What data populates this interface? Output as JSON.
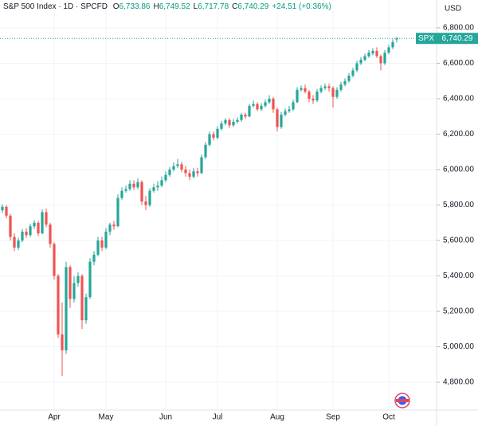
{
  "chart_data": {
    "type": "candlestick",
    "symbol_line": "S&P 500 Index · 1D · SPCFD",
    "stats": [
      {
        "label": "O",
        "value": "6,733.86"
      },
      {
        "label": "H",
        "value": "6,749.52"
      },
      {
        "label": "L",
        "value": "6,717.78"
      },
      {
        "label": "C",
        "value": "6,740.29"
      },
      {
        "value": "+24.51 (+0.36%)"
      }
    ],
    "currency": "USD",
    "last_price": {
      "symbol": "SPX",
      "label": "6,740.29"
    },
    "up_color": "#26a69a",
    "down_color": "#ef5350",
    "grid": true,
    "ylim": [
      4643,
      6957
    ],
    "yticks": [
      {
        "value": 4800,
        "label": "4,800.00"
      },
      {
        "value": 5000,
        "label": "5,000.00"
      },
      {
        "value": 5200,
        "label": "5,200.00"
      },
      {
        "value": 5400,
        "label": "5,400.00"
      },
      {
        "value": 5600,
        "label": "5,600.00"
      },
      {
        "value": 5800,
        "label": "5,800.00"
      },
      {
        "value": 6000,
        "label": "6,000.00"
      },
      {
        "value": 6200,
        "label": "6,200.00"
      },
      {
        "value": 6400,
        "label": "6,400.00"
      },
      {
        "value": 6600,
        "label": "6,600.00"
      },
      {
        "value": 6800,
        "label": "6,800.00"
      }
    ],
    "categories": [
      null,
      null,
      null,
      null,
      null,
      null,
      null,
      null,
      null,
      null,
      null,
      null,
      null,
      "Apr",
      null,
      null,
      null,
      null,
      null,
      null,
      null,
      null,
      null,
      null,
      null,
      null,
      "May",
      null,
      null,
      null,
      null,
      null,
      null,
      null,
      null,
      null,
      null,
      null,
      null,
      null,
      null,
      "Jun",
      null,
      null,
      null,
      null,
      null,
      null,
      null,
      null,
      null,
      null,
      null,
      null,
      "Jul",
      null,
      null,
      null,
      null,
      null,
      null,
      null,
      null,
      null,
      null,
      null,
      null,
      null,
      null,
      "Aug",
      null,
      null,
      null,
      null,
      null,
      null,
      null,
      null,
      null,
      null,
      null,
      null,
      null,
      "Sep",
      null,
      null,
      null,
      null,
      null,
      null,
      null,
      null,
      null,
      null,
      null,
      null,
      null,
      "Oct",
      null,
      null
    ],
    "open": [
      5770,
      5790,
      5740,
      5620,
      5560,
      5600,
      5650,
      5630,
      5680,
      5700,
      5640,
      5760,
      5690,
      5580,
      5400,
      5070,
      4980,
      5450,
      5270,
      5360,
      5400,
      5150,
      5280,
      5480,
      5520,
      5600,
      5560,
      5650,
      5690,
      5680,
      5840,
      5880,
      5890,
      5920,
      5900,
      5930,
      5820,
      5800,
      5880,
      5900,
      5910,
      5940,
      5970,
      6000,
      6020,
      6030,
      6000,
      5980,
      5960,
      5990,
      5980,
      6070,
      6140,
      6200,
      6180,
      6230,
      6260,
      6280,
      6250,
      6270,
      6280,
      6310,
      6300,
      6360,
      6370,
      6340,
      6360,
      6380,
      6400,
      6340,
      6240,
      6310,
      6330,
      6340,
      6380,
      6450,
      6460,
      6440,
      6400,
      6390,
      6440,
      6460,
      6470,
      6460,
      6410,
      6450,
      6480,
      6500,
      6530,
      6560,
      6600,
      6620,
      6640,
      6655,
      6670,
      6640,
      6600,
      6660,
      6690,
      6733.86
    ],
    "high": [
      5805,
      5800,
      5750,
      5640,
      5615,
      5665,
      5670,
      5695,
      5715,
      5710,
      5775,
      5780,
      5700,
      5590,
      5410,
      5250,
      5480,
      5460,
      5400,
      5420,
      5410,
      5300,
      5500,
      5540,
      5620,
      5620,
      5670,
      5700,
      5710,
      5860,
      5900,
      5910,
      5940,
      5940,
      5950,
      5940,
      5850,
      5895,
      5920,
      5935,
      5960,
      5990,
      6015,
      6040,
      6060,
      6045,
      6020,
      6000,
      6010,
      6010,
      6085,
      6155,
      6215,
      6215,
      6245,
      6275,
      6290,
      6290,
      6285,
      6295,
      6320,
      6320,
      6370,
      6390,
      6380,
      6375,
      6395,
      6420,
      6410,
      6350,
      6325,
      6345,
      6360,
      6395,
      6465,
      6475,
      6480,
      6450,
      6420,
      6455,
      6475,
      6485,
      6485,
      6470,
      6465,
      6495,
      6515,
      6545,
      6575,
      6615,
      6635,
      6655,
      6675,
      6685,
      6690,
      6650,
      6675,
      6705,
      6735,
      6749.52
    ],
    "low": [
      5755,
      5725,
      5600,
      5540,
      5545,
      5590,
      5615,
      5620,
      5665,
      5625,
      5635,
      5675,
      5560,
      5380,
      5050,
      4835,
      4960,
      5220,
      5250,
      5340,
      5100,
      5130,
      5270,
      5460,
      5510,
      5540,
      5550,
      5630,
      5660,
      5675,
      5830,
      5870,
      5880,
      5885,
      5890,
      5800,
      5770,
      5790,
      5870,
      5880,
      5900,
      5930,
      5960,
      5990,
      6010,
      5985,
      5960,
      5940,
      5950,
      5960,
      5975,
      6060,
      6130,
      6165,
      6170,
      6220,
      6250,
      6235,
      6240,
      6260,
      6270,
      6285,
      6295,
      6350,
      6330,
      6330,
      6350,
      6370,
      6320,
      6215,
      6230,
      6300,
      6320,
      6330,
      6375,
      6440,
      6430,
      6380,
      6370,
      6380,
      6430,
      6450,
      6440,
      6350,
      6400,
      6440,
      6470,
      6490,
      6520,
      6550,
      6590,
      6610,
      6630,
      6645,
      6630,
      6560,
      6590,
      6650,
      6680,
      6717.78
    ],
    "close": [
      5790,
      5740,
      5620,
      5560,
      5600,
      5650,
      5630,
      5680,
      5700,
      5640,
      5760,
      5690,
      5580,
      5400,
      5070,
      4980,
      5450,
      5270,
      5360,
      5400,
      5150,
      5280,
      5480,
      5520,
      5600,
      5560,
      5650,
      5690,
      5680,
      5840,
      5880,
      5890,
      5920,
      5900,
      5930,
      5820,
      5800,
      5880,
      5900,
      5910,
      5940,
      5970,
      6000,
      6020,
      6030,
      6000,
      5980,
      5960,
      5990,
      5980,
      6070,
      6140,
      6200,
      6180,
      6230,
      6260,
      6280,
      6250,
      6270,
      6280,
      6310,
      6300,
      6360,
      6370,
      6340,
      6360,
      6380,
      6400,
      6340,
      6240,
      6310,
      6330,
      6340,
      6380,
      6450,
      6460,
      6440,
      6400,
      6390,
      6440,
      6460,
      6470,
      6460,
      6410,
      6450,
      6480,
      6500,
      6530,
      6560,
      6600,
      6620,
      6640,
      6660,
      6670,
      6640,
      6600,
      6660,
      6690,
      6720,
      6740.29
    ]
  }
}
